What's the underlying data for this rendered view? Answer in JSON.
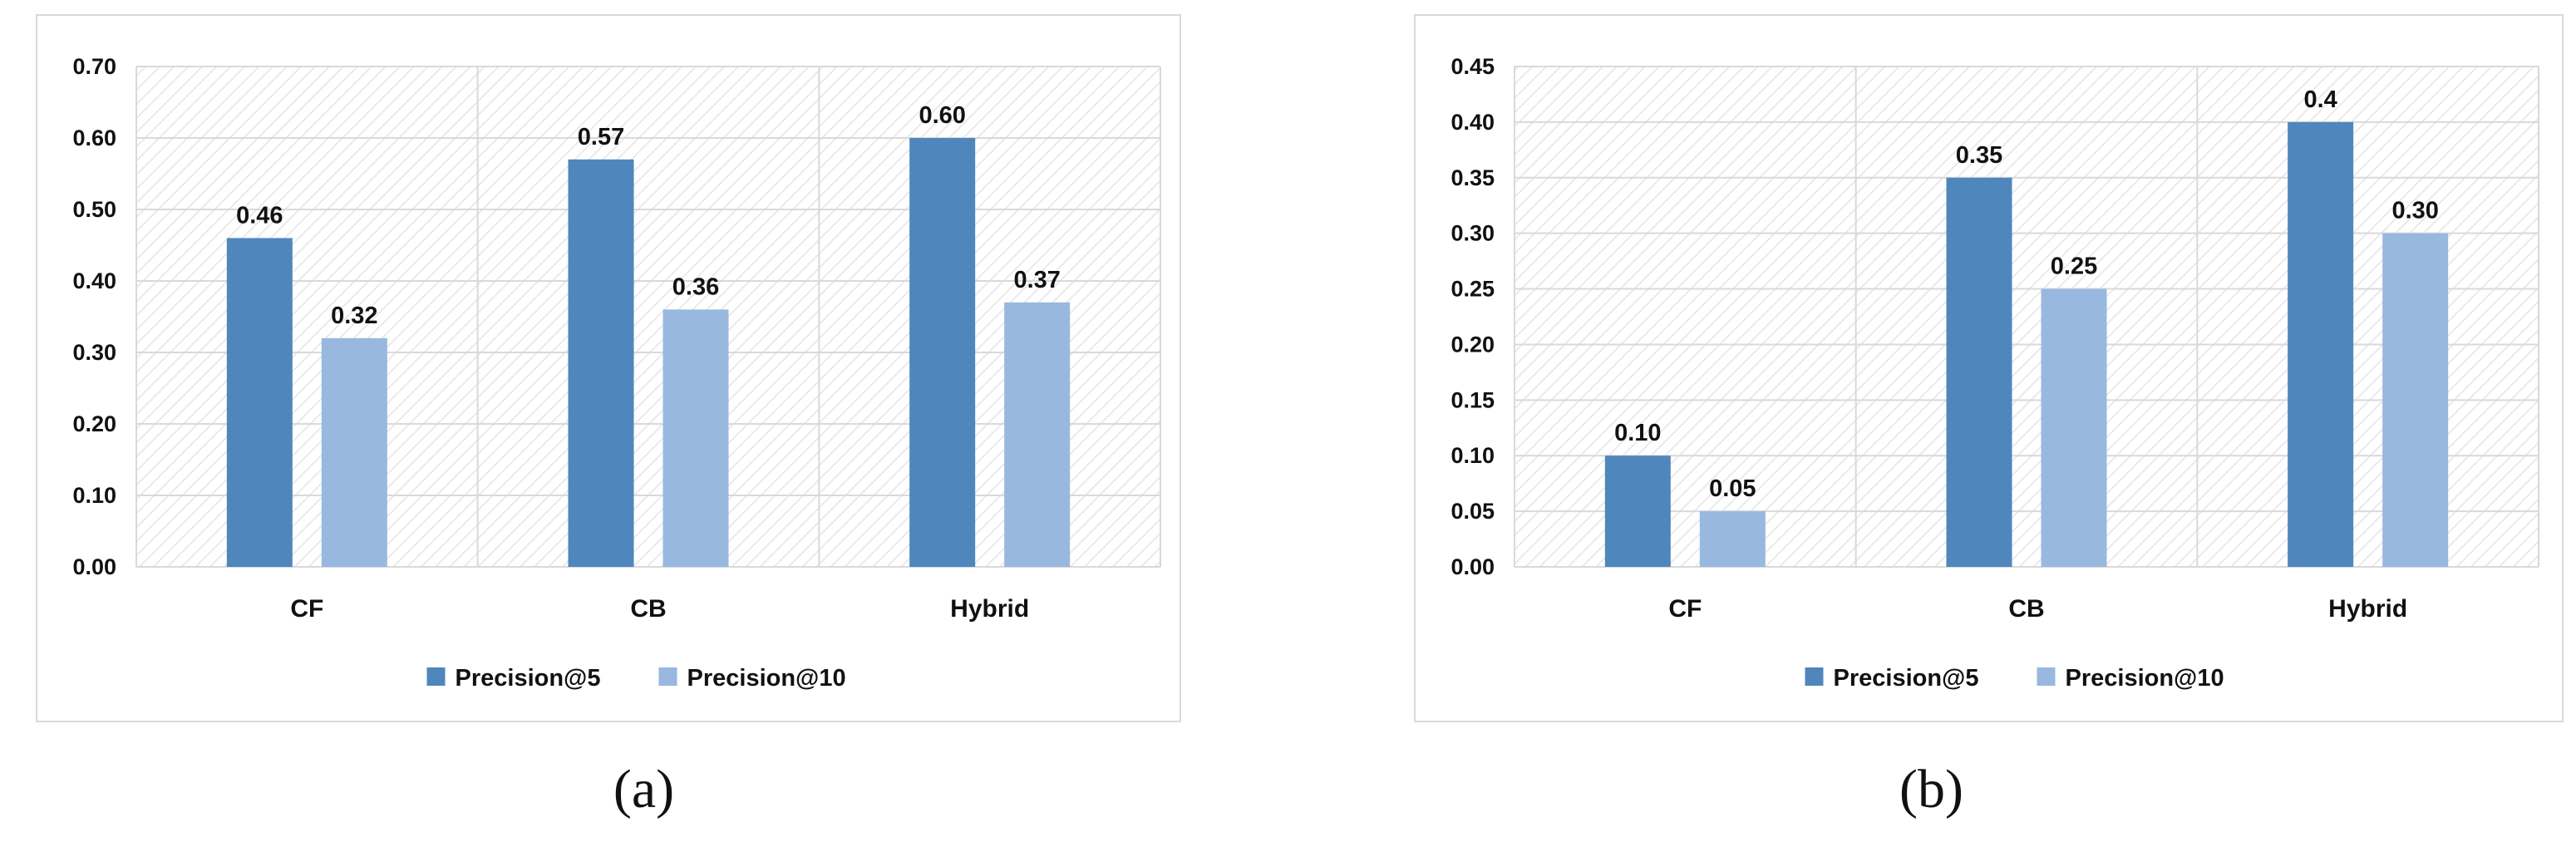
{
  "colors": {
    "series1": "#4f87bd",
    "series2": "#98b8df",
    "grid": "#d9d9d9",
    "hatch": "#e4e4e4",
    "frame": "#d9d9d9",
    "text": "#111111"
  },
  "chart_data": [
    {
      "type": "bar",
      "caption": "(a)",
      "categories": [
        "CF",
        "CB",
        "Hybrid"
      ],
      "series": [
        {
          "name": "Precision@5",
          "values": [
            0.46,
            0.57,
            0.6
          ],
          "labels": [
            "0.46",
            "0.57",
            "0.60"
          ]
        },
        {
          "name": "Precision@10",
          "values": [
            0.32,
            0.36,
            0.37
          ],
          "labels": [
            "0.32",
            "0.36",
            "0.37"
          ]
        }
      ],
      "yticks": [
        "0.00",
        "0.10",
        "0.20",
        "0.30",
        "0.40",
        "0.50",
        "0.60",
        "0.70"
      ],
      "ylim": [
        0,
        0.7
      ],
      "grid": true,
      "legend_position": "bottom"
    },
    {
      "type": "bar",
      "caption": "(b)",
      "categories": [
        "CF",
        "CB",
        "Hybrid"
      ],
      "series": [
        {
          "name": "Precision@5",
          "values": [
            0.1,
            0.35,
            0.4
          ],
          "labels": [
            "0.10",
            "0.35",
            "0.4"
          ]
        },
        {
          "name": "Precision@10",
          "values": [
            0.05,
            0.25,
            0.3
          ],
          "labels": [
            "0.05",
            "0.25",
            "0.30"
          ]
        }
      ],
      "yticks": [
        "0.00",
        "0.05",
        "0.10",
        "0.15",
        "0.20",
        "0.25",
        "0.30",
        "0.35",
        "0.40",
        "0.45"
      ],
      "ylim": [
        0,
        0.45
      ],
      "grid": true,
      "legend_position": "bottom"
    }
  ]
}
